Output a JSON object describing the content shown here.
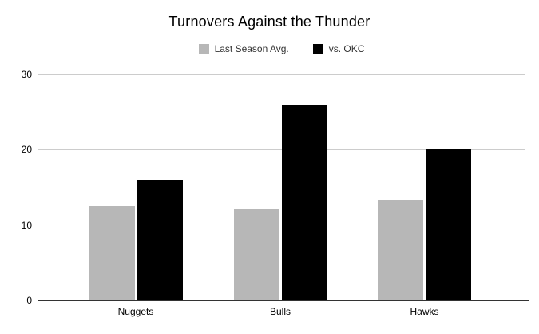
{
  "chart_data": {
    "type": "bar",
    "title": "Turnovers Against the Thunder",
    "categories": [
      "Nuggets",
      "Bulls",
      "Hawks"
    ],
    "series": [
      {
        "name": "Last Season Avg.",
        "color": "#b7b7b7",
        "values": [
          12.5,
          12.1,
          13.4
        ]
      },
      {
        "name": "vs. OKC",
        "color": "#000000",
        "values": [
          16,
          26,
          20
        ]
      }
    ],
    "xlabel": "",
    "ylabel": "",
    "ylim": [
      0,
      30
    ],
    "yticks": [
      0,
      10,
      20,
      30
    ],
    "grid": true,
    "legend_position": "top"
  },
  "colors": {
    "background": "#ffffff",
    "gridline": "#cccccc",
    "axis_line": "#333333",
    "title_text": "#000000",
    "legend_text": "#333333",
    "tick_text": "#000000"
  }
}
